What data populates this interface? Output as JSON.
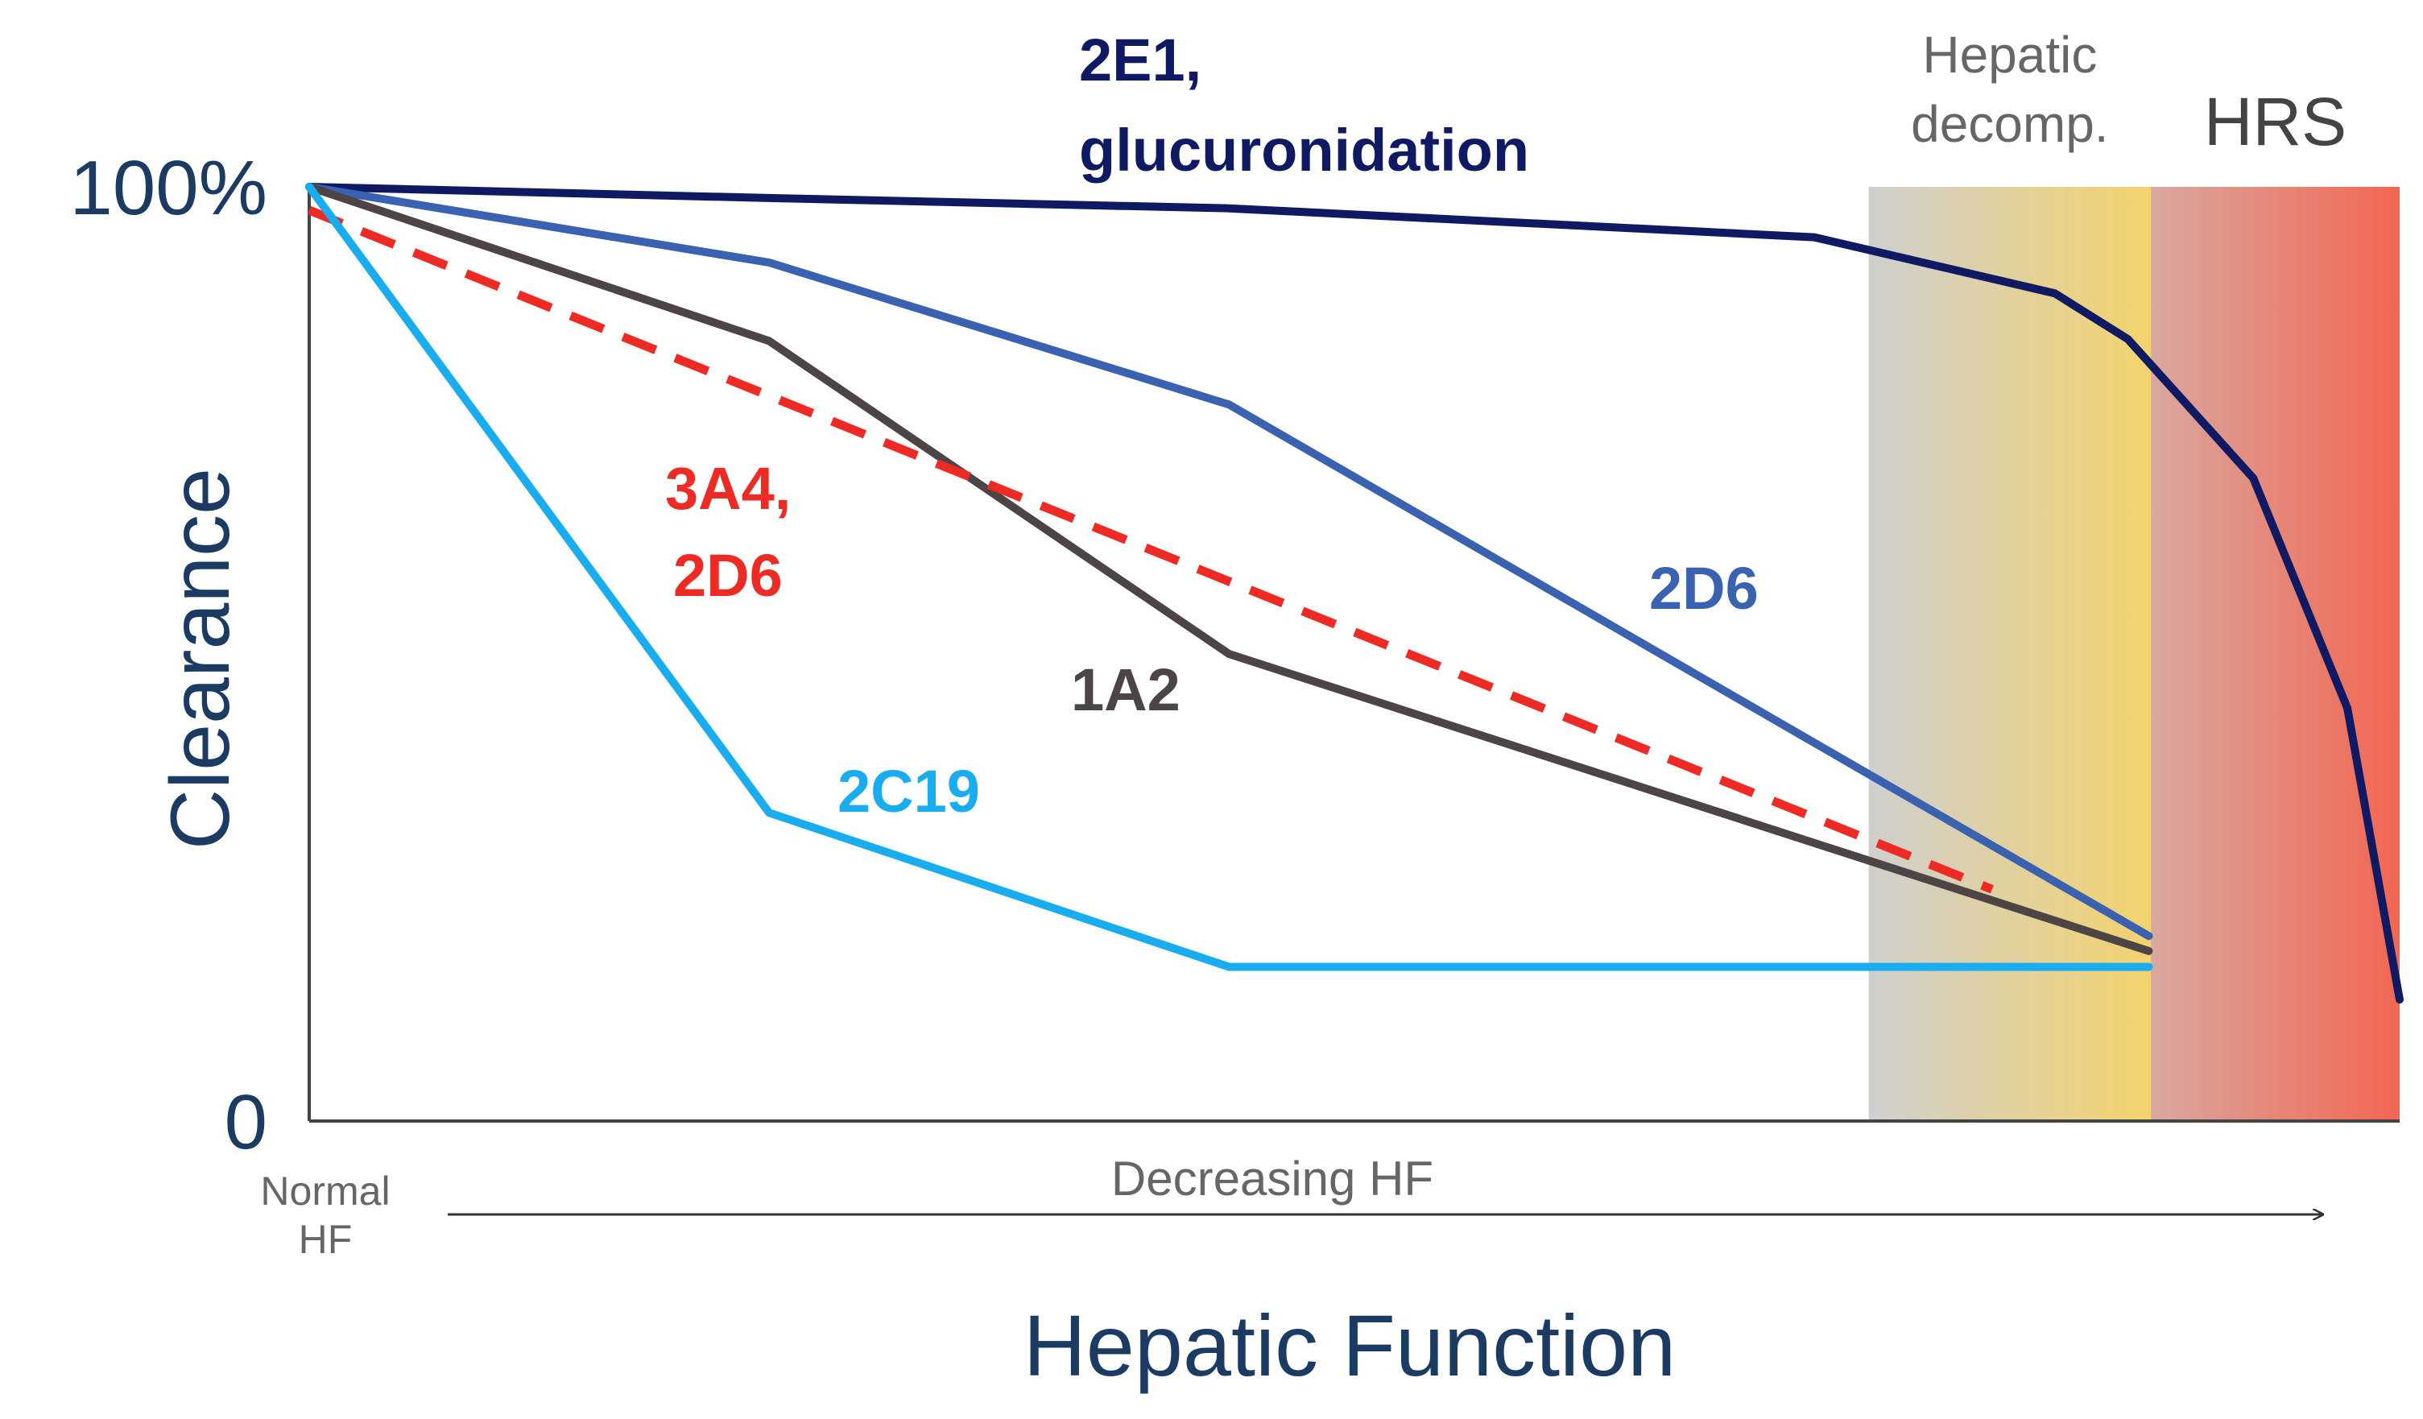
{
  "chart_data": {
    "type": "line",
    "ylabel": "Clearance",
    "xlabel": "Hepatic Function",
    "x_start_label": "Normal HF",
    "x_start_label_lines": [
      "Normal",
      "HF"
    ],
    "x_arrow_label": "Decreasing HF",
    "ylim": [
      0,
      100
    ],
    "xlim": [
      0,
      100
    ],
    "y_ticks": [
      {
        "value": 100,
        "label": "100%"
      },
      {
        "value": 0,
        "label": "0"
      }
    ],
    "regions": [
      {
        "name": "Hepatic decomp.",
        "lines": [
          "Hepatic",
          "decomp."
        ],
        "range": [
          74.6,
          88.1
        ],
        "colors": [
          "#cfcfcf",
          "#f3d36e"
        ]
      },
      {
        "name": "HRS",
        "lines": [
          "HRS"
        ],
        "range": [
          88.1,
          100
        ],
        "colors": [
          "#d9a8a0",
          "#f26652"
        ]
      }
    ],
    "series": [
      {
        "name": "2E1, glucuronidation",
        "label_lines": [
          "2E1,",
          "glucuronidation"
        ],
        "color": "#0f1a63",
        "dash": false,
        "x": [
          0,
          22,
          44,
          72,
          83.5,
          87,
          93,
          97.5,
          100
        ],
        "y": [
          100,
          98.8,
          97.7,
          94.6,
          88.6,
          83.7,
          68.8,
          44.2,
          13
        ]
      },
      {
        "name": "2D6",
        "label_lines": [
          "2D6"
        ],
        "color": "#3a62b0",
        "dash": false,
        "x": [
          0,
          22,
          44,
          88
        ],
        "y": [
          100,
          91.9,
          76.7,
          19.8
        ]
      },
      {
        "name": "1A2",
        "label_lines": [
          "1A2"
        ],
        "color": "#4d4545",
        "dash": false,
        "x": [
          0,
          22,
          44,
          88
        ],
        "y": [
          100,
          83.5,
          50,
          18.2
        ]
      },
      {
        "name": "3A4, 2D6",
        "label_lines": [
          "3A4,",
          "2D6"
        ],
        "color": "#ee2a24",
        "dash": true,
        "x": [
          0,
          80.5
        ],
        "y": [
          97.5,
          24.8
        ]
      },
      {
        "name": "2C19",
        "label_lines": [
          "2C19"
        ],
        "color": "#19adef",
        "dash": false,
        "x": [
          0,
          22,
          44,
          88
        ],
        "y": [
          100,
          33,
          16.5,
          16.5
        ]
      }
    ]
  }
}
